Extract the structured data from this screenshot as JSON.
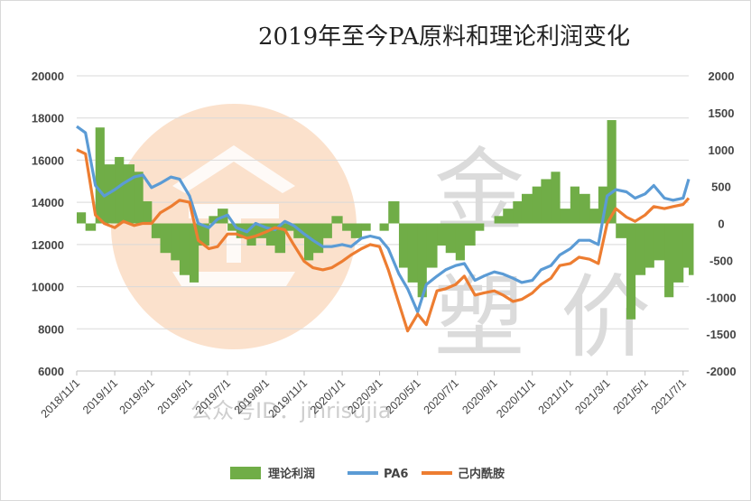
{
  "chart_data": {
    "type": "line",
    "title": "2019年至今PA原料和理论利润变化",
    "categories": [
      "2018/11/1",
      "2019/1/1",
      "2019/3/1",
      "2019/5/1",
      "2019/7/1",
      "2019/9/1",
      "2019/11/1",
      "2020/1/1",
      "2020/3/1",
      "2020/5/1",
      "2020/7/1",
      "2020/9/1",
      "2020/11/1",
      "2021/1/1",
      "2021/3/1",
      "2021/5/1",
      "2021/7/1"
    ],
    "y_left": {
      "ylim": [
        6000,
        20000
      ],
      "ticks": [
        "20000",
        "18000",
        "16000",
        "14000",
        "12000",
        "10000",
        "8000",
        "6000"
      ]
    },
    "y_right": {
      "ylim": [
        -2000,
        2000
      ],
      "ticks": [
        "2000",
        "1500",
        "1000",
        "500",
        "0",
        "-500",
        "-1000",
        "-1500",
        "-2000"
      ]
    },
    "series": [
      {
        "name": "PA6",
        "axis": "left",
        "color": "#5b9bd5",
        "x": [
          "2018/11/1",
          "2018/11/15",
          "2018/12/1",
          "2018/12/15",
          "2019/1/1",
          "2019/1/15",
          "2019/2/1",
          "2019/2/15",
          "2019/3/1",
          "2019/3/15",
          "2019/4/1",
          "2019/4/15",
          "2019/5/1",
          "2019/5/15",
          "2019/6/1",
          "2019/6/15",
          "2019/7/1",
          "2019/7/15",
          "2019/8/1",
          "2019/8/15",
          "2019/9/1",
          "2019/9/15",
          "2019/10/1",
          "2019/10/15",
          "2019/11/1",
          "2019/11/15",
          "2019/12/1",
          "2019/12/15",
          "2020/1/1",
          "2020/1/15",
          "2020/2/1",
          "2020/2/15",
          "2020/3/1",
          "2020/3/15",
          "2020/4/1",
          "2020/4/15",
          "2020/5/1",
          "2020/5/15",
          "2020/6/1",
          "2020/6/15",
          "2020/7/1",
          "2020/7/15",
          "2020/8/1",
          "2020/8/15",
          "2020/9/1",
          "2020/9/15",
          "2020/10/1",
          "2020/10/15",
          "2020/11/1",
          "2020/11/15",
          "2020/12/1",
          "2020/12/15",
          "2021/1/1",
          "2021/1/15",
          "2021/2/1",
          "2021/2/15",
          "2021/3/1",
          "2021/3/15",
          "2021/4/1",
          "2021/4/15",
          "2021/5/1",
          "2021/5/15",
          "2021/6/1",
          "2021/6/15",
          "2021/7/1",
          "2021/7/10"
        ],
        "values": [
          17600,
          17300,
          14800,
          14300,
          14600,
          14900,
          15200,
          15300,
          14700,
          14900,
          15200,
          15100,
          14300,
          13000,
          12800,
          13200,
          13400,
          12800,
          12600,
          13000,
          12800,
          12700,
          13100,
          12900,
          12500,
          12200,
          11900,
          11900,
          12000,
          11900,
          12300,
          12400,
          12300,
          11800,
          10600,
          9900,
          8800,
          10100,
          10500,
          10800,
          11000,
          11100,
          10300,
          10500,
          10700,
          10600,
          10400,
          10200,
          10300,
          10800,
          11000,
          11500,
          11800,
          12200,
          12200,
          12000,
          14300,
          14600,
          14500,
          14200,
          14400,
          14800,
          14200,
          14100,
          14200,
          15100
        ]
      },
      {
        "name": "己内酰胺",
        "axis": "left",
        "color": "#ed7d31",
        "x": [
          "2018/11/1",
          "2018/11/15",
          "2018/12/1",
          "2018/12/15",
          "2019/1/1",
          "2019/1/15",
          "2019/2/1",
          "2019/2/15",
          "2019/3/1",
          "2019/3/15",
          "2019/4/1",
          "2019/4/15",
          "2019/5/1",
          "2019/5/15",
          "2019/6/1",
          "2019/6/15",
          "2019/7/1",
          "2019/7/15",
          "2019/8/1",
          "2019/8/15",
          "2019/9/1",
          "2019/9/15",
          "2019/10/1",
          "2019/10/15",
          "2019/11/1",
          "2019/11/15",
          "2019/12/1",
          "2019/12/15",
          "2020/1/1",
          "2020/1/15",
          "2020/2/1",
          "2020/2/15",
          "2020/3/1",
          "2020/3/15",
          "2020/4/1",
          "2020/4/15",
          "2020/5/1",
          "2020/5/15",
          "2020/6/1",
          "2020/6/15",
          "2020/7/1",
          "2020/7/15",
          "2020/8/1",
          "2020/8/15",
          "2020/9/1",
          "2020/9/15",
          "2020/10/1",
          "2020/10/15",
          "2020/11/1",
          "2020/11/15",
          "2020/12/1",
          "2020/12/15",
          "2021/1/1",
          "2021/1/15",
          "2021/2/1",
          "2021/2/15",
          "2021/3/1",
          "2021/3/15",
          "2021/4/1",
          "2021/4/15",
          "2021/5/1",
          "2021/5/15",
          "2021/6/1",
          "2021/6/15",
          "2021/7/1",
          "2021/7/10"
        ],
        "values": [
          16500,
          16300,
          13400,
          13000,
          12800,
          13100,
          12900,
          13000,
          13000,
          13500,
          13800,
          14100,
          14000,
          12200,
          11800,
          11900,
          12500,
          12500,
          12300,
          12400,
          12600,
          12800,
          12700,
          12000,
          11200,
          10900,
          10800,
          10900,
          11200,
          11500,
          11800,
          12000,
          11900,
          10800,
          9200,
          7900,
          8700,
          8200,
          9800,
          9900,
          10100,
          10500,
          9600,
          9700,
          9800,
          9600,
          9300,
          9400,
          9700,
          10100,
          10400,
          11000,
          11100,
          11400,
          11300,
          11100,
          13000,
          13700,
          13300,
          13100,
          13400,
          13800,
          13700,
          13800,
          13900,
          14200
        ]
      }
    ],
    "profit": {
      "name": "理论利润",
      "axis": "right",
      "color": "#70ad47",
      "x": [
        "2018/11/1",
        "2018/11/15",
        "2018/12/1",
        "2018/12/15",
        "2019/1/1",
        "2019/1/15",
        "2019/2/1",
        "2019/2/15",
        "2019/3/1",
        "2019/3/15",
        "2019/4/1",
        "2019/4/15",
        "2019/5/1",
        "2019/5/15",
        "2019/6/1",
        "2019/6/15",
        "2019/7/1",
        "2019/7/15",
        "2019/8/1",
        "2019/8/15",
        "2019/9/1",
        "2019/9/15",
        "2019/10/1",
        "2019/10/15",
        "2019/11/1",
        "2019/11/15",
        "2019/12/1",
        "2019/12/15",
        "2020/1/1",
        "2020/1/15",
        "2020/2/1",
        "2020/2/15",
        "2020/3/1",
        "2020/3/15",
        "2020/4/1",
        "2020/4/15",
        "2020/5/1",
        "2020/5/15",
        "2020/6/1",
        "2020/6/15",
        "2020/7/1",
        "2020/7/15",
        "2020/8/1",
        "2020/8/15",
        "2020/9/1",
        "2020/9/15",
        "2020/10/1",
        "2020/10/15",
        "2020/11/1",
        "2020/11/15",
        "2020/12/1",
        "2020/12/15",
        "2021/1/1",
        "2021/1/15",
        "2021/2/1",
        "2021/2/15",
        "2021/3/1",
        "2021/3/15",
        "2021/4/1",
        "2021/4/15",
        "2021/5/1",
        "2021/5/15",
        "2021/6/1",
        "2021/6/15",
        "2021/7/1",
        "2021/7/10"
      ],
      "values": [
        150,
        -100,
        1300,
        800,
        900,
        800,
        700,
        300,
        -200,
        -400,
        -500,
        -700,
        -800,
        -300,
        100,
        200,
        -100,
        -200,
        -300,
        -200,
        -300,
        -400,
        -100,
        -200,
        -500,
        -400,
        -200,
        100,
        -100,
        -200,
        -100,
        0,
        -100,
        300,
        -600,
        -800,
        -1000,
        -600,
        -300,
        -400,
        -500,
        -300,
        -100,
        0,
        100,
        200,
        300,
        400,
        500,
        600,
        700,
        200,
        500,
        400,
        200,
        500,
        1400,
        -200,
        -1300,
        -700,
        -600,
        -500,
        -1000,
        -800,
        -600,
        -700
      ]
    }
  },
  "legend": {
    "profit": "理论利润",
    "pa6": "PA6",
    "cpl": "己内酰胺"
  },
  "watermark": {
    "brand_top": "金",
    "brand_left": "塑",
    "brand_right": "价",
    "id_text": "公众号ID：jinrisujia"
  },
  "colors": {
    "grid": "#d9d9d9",
    "watermark_circle": "#f7c9a3",
    "watermark_logo": "#b8b8b8"
  }
}
